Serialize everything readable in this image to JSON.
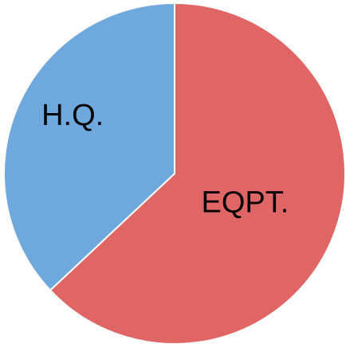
{
  "chart_data": {
    "type": "pie",
    "title": "",
    "start_angle_deg": 0,
    "direction": "clockwise",
    "slices": [
      {
        "label": "EQPT.",
        "value": 63,
        "color": "#E06666"
      },
      {
        "label": "H.Q.",
        "value": 37,
        "color": "#6FA8DC"
      }
    ],
    "border_color": "#ffffff"
  }
}
